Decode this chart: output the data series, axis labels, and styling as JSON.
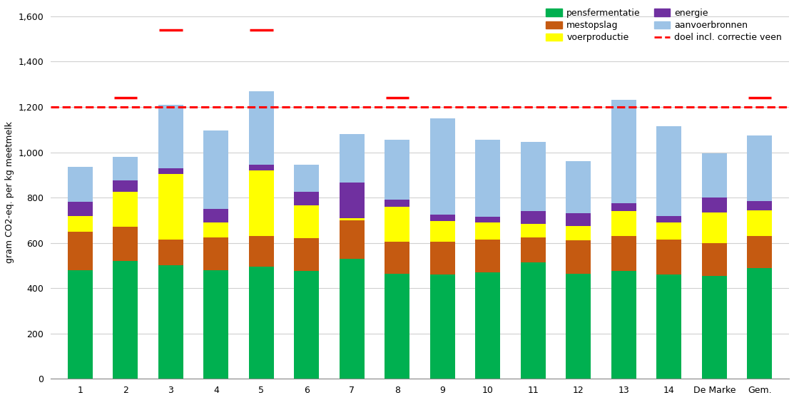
{
  "categories": [
    "1",
    "2",
    "3",
    "4",
    "5",
    "6",
    "7",
    "8",
    "9",
    "10",
    "11",
    "12",
    "13",
    "14",
    "De Marke",
    "Gem."
  ],
  "pensfermentatie": [
    480,
    520,
    500,
    480,
    495,
    475,
    530,
    465,
    460,
    470,
    515,
    465,
    475,
    460,
    455,
    490
  ],
  "mestopslag": [
    170,
    150,
    115,
    145,
    135,
    145,
    170,
    140,
    145,
    145,
    110,
    145,
    155,
    155,
    145,
    140
  ],
  "voerproductie": [
    70,
    155,
    290,
    65,
    290,
    145,
    10,
    155,
    90,
    75,
    60,
    65,
    110,
    75,
    135,
    115
  ],
  "energie": [
    60,
    50,
    25,
    60,
    25,
    60,
    155,
    30,
    30,
    25,
    55,
    55,
    35,
    30,
    65,
    40
  ],
  "aanvoerbronnen": [
    155,
    105,
    280,
    345,
    325,
    120,
    215,
    265,
    425,
    340,
    305,
    230,
    455,
    395,
    195,
    290
  ],
  "doel_value": 1200,
  "per_bar_doel": [
    1200,
    1240,
    1540,
    1200,
    1540,
    1200,
    1200,
    1240,
    1200,
    1200,
    1200,
    1200,
    1200,
    1200,
    1200,
    1240
  ],
  "colors": {
    "pensfermentatie": "#00b050",
    "mestopslag": "#c55a11",
    "voerproductie": "#ffff00",
    "energie": "#7030a0",
    "aanvoerbronnen": "#9dc3e6"
  },
  "doel_color": "#ff0000",
  "ylabel": "gram CO2-eq. per kg meetmelk",
  "ylim": [
    0,
    1650
  ],
  "yticks": [
    0,
    200,
    400,
    600,
    800,
    1000,
    1200,
    1400,
    1600
  ],
  "ytick_labels": [
    "0",
    "200",
    "400",
    "600",
    "800",
    "1,000",
    "1,200",
    "1,400",
    "1,600"
  ],
  "background_color": "#ffffff"
}
